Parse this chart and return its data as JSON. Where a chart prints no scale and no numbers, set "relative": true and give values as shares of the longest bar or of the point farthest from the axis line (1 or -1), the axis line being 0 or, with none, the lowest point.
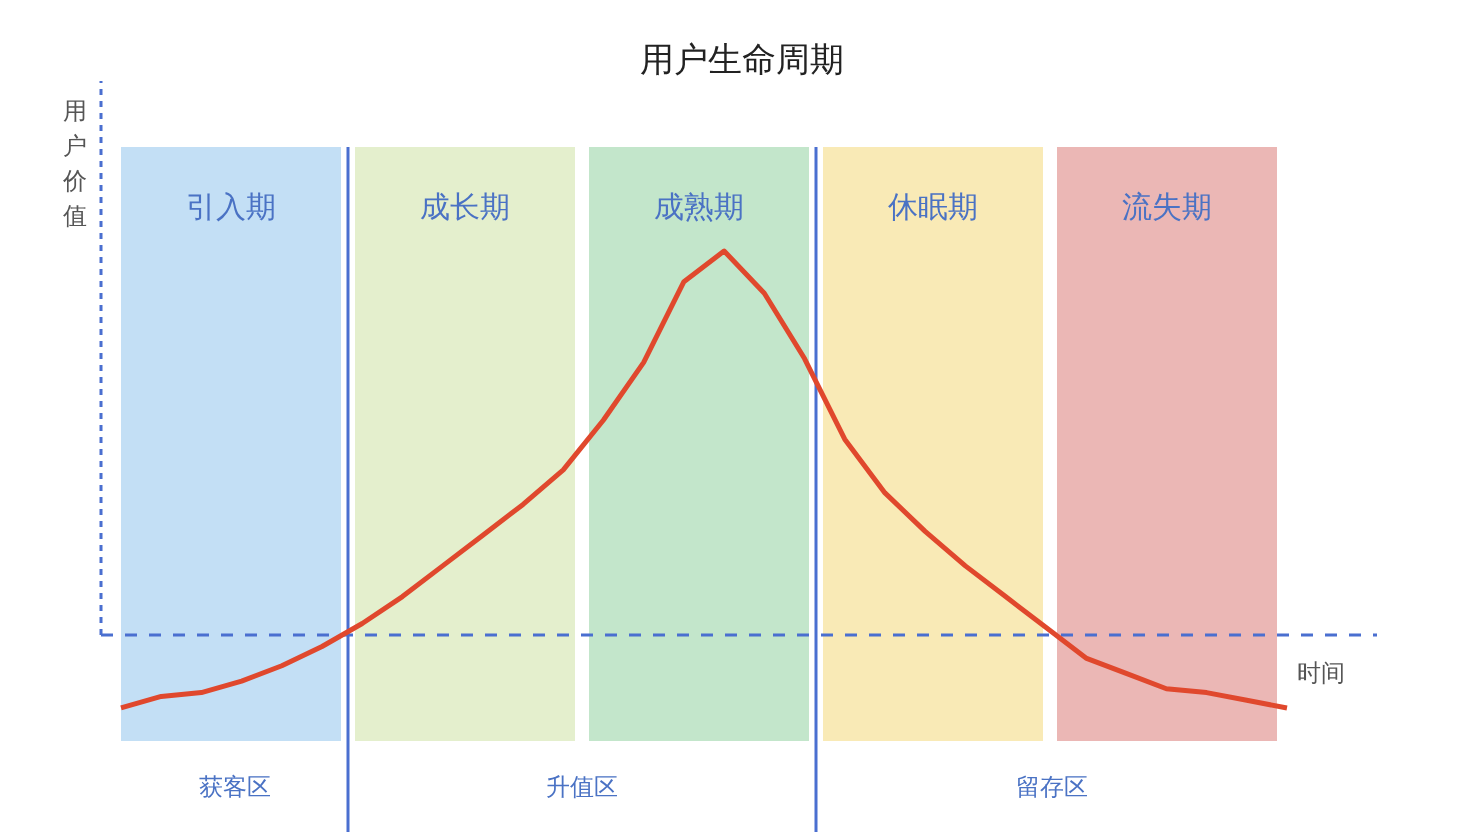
{
  "chart_data": {
    "type": "line",
    "title": "用户生命周期",
    "xlabel": "时间",
    "ylabel": "用户价值",
    "relative": true,
    "grid": false,
    "line_style": "solid",
    "marker": "none",
    "categories": [
      null,
      null,
      null,
      null,
      null,
      null,
      null,
      null,
      null,
      null,
      null,
      null,
      null,
      null,
      null,
      null,
      null,
      null,
      null,
      null,
      null,
      null,
      null,
      null,
      null,
      null,
      null,
      null,
      null,
      null
    ],
    "series": [
      {
        "color": "#e0482d",
        "values": [
          -0.19,
          -0.16,
          -0.15,
          -0.12,
          -0.08,
          -0.03,
          0.03,
          0.1,
          0.18,
          0.26,
          0.34,
          0.43,
          0.56,
          0.71,
          0.92,
          1,
          0.89,
          0.72,
          0.51,
          0.37,
          0.27,
          0.18,
          0.1,
          0.02,
          -0.06,
          -0.1,
          -0.14,
          -0.15,
          -0.17,
          -0.19
        ]
      }
    ],
    "ref_lines": [
      {
        "axis": "y",
        "value": 0,
        "color": "#4a6fd0",
        "line_style": "dashed"
      }
    ],
    "annotations": [
      "引入期",
      "成长期",
      "成熟期",
      "休眠期",
      "流失期",
      "获客区",
      "升值区",
      "留存区"
    ]
  }
}
